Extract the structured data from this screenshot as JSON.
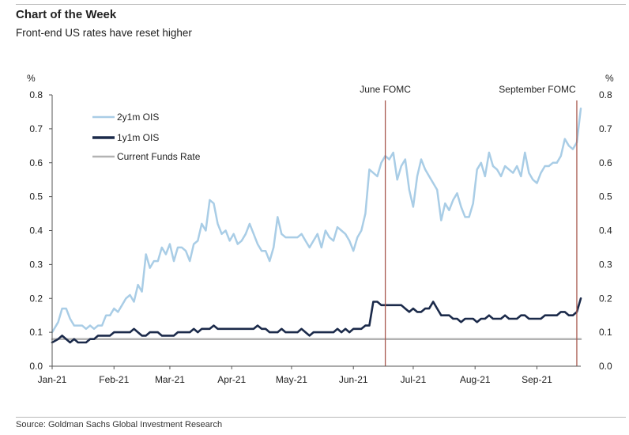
{
  "header": {
    "title": "Chart of the Week",
    "subtitle": "Front-end US rates have reset higher"
  },
  "footer": {
    "source": "Source: Goldman Sachs Global Investment Research"
  },
  "colors": {
    "series_2y1m": "#a9cde6",
    "series_1y1m": "#1b2a4a",
    "funds_rate": "#b3b3b3",
    "fomc_line": "#a85a50",
    "axis": "#555555"
  },
  "chart_data": {
    "type": "line",
    "title": "Front-end US rates have reset higher",
    "ylabel_left": "%",
    "ylabel_right": "%",
    "ylim": [
      0,
      0.8
    ],
    "y_ticks": [
      "0.0",
      "0.1",
      "0.2",
      "0.3",
      "0.4",
      "0.5",
      "0.6",
      "0.7",
      "0.8"
    ],
    "x_ticks": [
      "Jan-21",
      "Feb-21",
      "Mar-21",
      "Apr-21",
      "May-21",
      "Jun-21",
      "Jul-21",
      "Aug-21",
      "Sep-21"
    ],
    "x_range_days": [
      0,
      265
    ],
    "annotations": [
      {
        "label": "June FOMC",
        "day": 167
      },
      {
        "label": "September FOMC",
        "day": 263
      }
    ],
    "legend": [
      "2y1m OIS",
      "1y1m OIS",
      "Current Funds Rate"
    ],
    "series": [
      {
        "name": "2y1m OIS",
        "x": [
          0,
          3,
          5,
          7,
          9,
          11,
          13,
          15,
          17,
          19,
          21,
          23,
          25,
          27,
          29,
          31,
          33,
          35,
          37,
          39,
          41,
          43,
          45,
          47,
          49,
          51,
          53,
          55,
          57,
          59,
          61,
          63,
          65,
          67,
          69,
          71,
          73,
          75,
          77,
          79,
          81,
          83,
          85,
          87,
          89,
          91,
          93,
          95,
          97,
          99,
          101,
          103,
          105,
          107,
          109,
          111,
          113,
          115,
          117,
          119,
          121,
          123,
          125,
          127,
          129,
          131,
          133,
          135,
          137,
          139,
          141,
          143,
          145,
          147,
          149,
          151,
          153,
          155,
          157,
          159,
          161,
          163,
          165,
          167,
          169,
          171,
          173,
          175,
          177,
          179,
          181,
          183,
          185,
          187,
          189,
          191,
          193,
          195,
          197,
          199,
          201,
          203,
          205,
          207,
          209,
          211,
          213,
          215,
          217,
          219,
          221,
          223,
          225,
          227,
          229,
          231,
          233,
          235,
          237,
          239,
          241,
          243,
          245,
          247,
          249,
          251,
          253,
          255,
          257,
          259,
          261,
          263,
          265
        ],
        "values": [
          0.1,
          0.13,
          0.17,
          0.17,
          0.14,
          0.12,
          0.12,
          0.12,
          0.11,
          0.12,
          0.11,
          0.12,
          0.12,
          0.15,
          0.15,
          0.17,
          0.16,
          0.18,
          0.2,
          0.21,
          0.19,
          0.24,
          0.22,
          0.33,
          0.29,
          0.31,
          0.31,
          0.35,
          0.33,
          0.36,
          0.31,
          0.35,
          0.35,
          0.34,
          0.31,
          0.36,
          0.37,
          0.42,
          0.4,
          0.49,
          0.48,
          0.42,
          0.39,
          0.4,
          0.37,
          0.39,
          0.36,
          0.37,
          0.39,
          0.42,
          0.39,
          0.36,
          0.34,
          0.34,
          0.31,
          0.35,
          0.44,
          0.39,
          0.38,
          0.38,
          0.38,
          0.38,
          0.39,
          0.37,
          0.35,
          0.37,
          0.39,
          0.35,
          0.4,
          0.38,
          0.37,
          0.41,
          0.4,
          0.39,
          0.37,
          0.34,
          0.38,
          0.4,
          0.45,
          0.58,
          0.57,
          0.56,
          0.6,
          0.62,
          0.61,
          0.63,
          0.55,
          0.59,
          0.61,
          0.52,
          0.47,
          0.56,
          0.61,
          0.58,
          0.56,
          0.54,
          0.52,
          0.43,
          0.48,
          0.46,
          0.49,
          0.51,
          0.47,
          0.44,
          0.44,
          0.48,
          0.58,
          0.6,
          0.56,
          0.63,
          0.59,
          0.58,
          0.56,
          0.59,
          0.58,
          0.57,
          0.59,
          0.56,
          0.63,
          0.57,
          0.55,
          0.54,
          0.57,
          0.59,
          0.59,
          0.6,
          0.6,
          0.62,
          0.67,
          0.65,
          0.64,
          0.66,
          0.76
        ]
      },
      {
        "name": "1y1m OIS",
        "x": [
          0,
          3,
          5,
          7,
          9,
          11,
          13,
          15,
          17,
          19,
          21,
          23,
          25,
          27,
          29,
          31,
          33,
          35,
          37,
          39,
          41,
          43,
          45,
          47,
          49,
          51,
          53,
          55,
          57,
          59,
          61,
          63,
          65,
          67,
          69,
          71,
          73,
          75,
          77,
          79,
          81,
          83,
          85,
          87,
          89,
          91,
          93,
          95,
          97,
          99,
          101,
          103,
          105,
          107,
          109,
          111,
          113,
          115,
          117,
          119,
          121,
          123,
          125,
          127,
          129,
          131,
          133,
          135,
          137,
          139,
          141,
          143,
          145,
          147,
          149,
          151,
          153,
          155,
          157,
          159,
          161,
          163,
          165,
          167,
          169,
          171,
          173,
          175,
          177,
          179,
          181,
          183,
          185,
          187,
          189,
          191,
          193,
          195,
          197,
          199,
          201,
          203,
          205,
          207,
          209,
          211,
          213,
          215,
          217,
          219,
          221,
          223,
          225,
          227,
          229,
          231,
          233,
          235,
          237,
          239,
          241,
          243,
          245,
          247,
          249,
          251,
          253,
          255,
          257,
          259,
          261,
          263,
          265
        ],
        "values": [
          0.07,
          0.08,
          0.09,
          0.08,
          0.07,
          0.08,
          0.07,
          0.07,
          0.07,
          0.08,
          0.08,
          0.09,
          0.09,
          0.09,
          0.09,
          0.1,
          0.1,
          0.1,
          0.1,
          0.1,
          0.11,
          0.1,
          0.09,
          0.09,
          0.1,
          0.1,
          0.1,
          0.09,
          0.09,
          0.09,
          0.09,
          0.1,
          0.1,
          0.1,
          0.1,
          0.11,
          0.1,
          0.11,
          0.11,
          0.11,
          0.12,
          0.11,
          0.11,
          0.11,
          0.11,
          0.11,
          0.11,
          0.11,
          0.11,
          0.11,
          0.11,
          0.12,
          0.11,
          0.11,
          0.1,
          0.1,
          0.1,
          0.11,
          0.1,
          0.1,
          0.1,
          0.1,
          0.11,
          0.1,
          0.09,
          0.1,
          0.1,
          0.1,
          0.1,
          0.1,
          0.1,
          0.11,
          0.1,
          0.11,
          0.1,
          0.11,
          0.11,
          0.11,
          0.12,
          0.12,
          0.19,
          0.19,
          0.18,
          0.18,
          0.18,
          0.18,
          0.18,
          0.18,
          0.17,
          0.16,
          0.17,
          0.16,
          0.16,
          0.17,
          0.17,
          0.19,
          0.17,
          0.15,
          0.15,
          0.15,
          0.14,
          0.14,
          0.13,
          0.14,
          0.14,
          0.14,
          0.13,
          0.14,
          0.14,
          0.15,
          0.14,
          0.14,
          0.14,
          0.15,
          0.14,
          0.14,
          0.14,
          0.15,
          0.15,
          0.14,
          0.14,
          0.14,
          0.14,
          0.15,
          0.15,
          0.15,
          0.15,
          0.16,
          0.16,
          0.15,
          0.15,
          0.16,
          0.2
        ]
      },
      {
        "name": "Current Funds Rate",
        "x": [
          0,
          265
        ],
        "values": [
          0.08,
          0.08
        ]
      }
    ]
  }
}
